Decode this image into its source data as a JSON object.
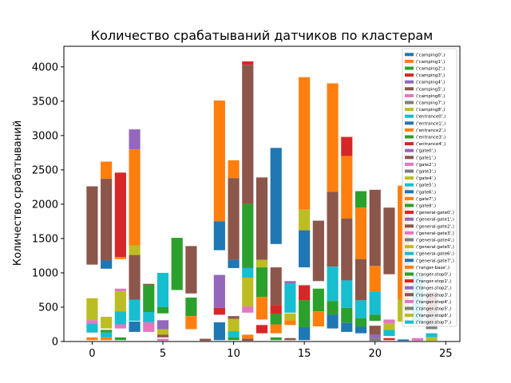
{
  "chart_data": {
    "type": "bar",
    "title": "Количество срабатываний датчиков по кластерам",
    "xlabel": "",
    "ylabel": "Количество срабатываний",
    "xlim": [
      -2,
      26
    ],
    "ylim": [
      0,
      4300
    ],
    "x_ticks": [
      0,
      5,
      10,
      15,
      20,
      25
    ],
    "y_ticks": [
      0,
      500,
      1000,
      1500,
      2000,
      2500,
      3000,
      3500,
      4000
    ],
    "grid": false,
    "legend_placement": "upper right",
    "series": [
      {
        "name": "('camping0',)",
        "color": "#1f77b4"
      },
      {
        "name": "('camping1',)",
        "color": "#ff7f0e"
      },
      {
        "name": "('camping2',)",
        "color": "#2ca02c"
      },
      {
        "name": "('camping3',)",
        "color": "#d62728"
      },
      {
        "name": "('camping4',)",
        "color": "#9467bd"
      },
      {
        "name": "('camping5',)",
        "color": "#8c564b"
      },
      {
        "name": "('camping6',)",
        "color": "#e377c2"
      },
      {
        "name": "('camping7',)",
        "color": "#7f7f7f"
      },
      {
        "name": "('camping8',)",
        "color": "#bcbd22"
      },
      {
        "name": "('entrance0',)",
        "color": "#17becf"
      },
      {
        "name": "('entrance1',)",
        "color": "#1f77b4"
      },
      {
        "name": "('entrance2',)",
        "color": "#ff7f0e"
      },
      {
        "name": "('entrance3',)",
        "color": "#2ca02c"
      },
      {
        "name": "('entrance4',)",
        "color": "#d62728"
      },
      {
        "name": "('gate0',)",
        "color": "#9467bd"
      },
      {
        "name": "('gate1',)",
        "color": "#8c564b"
      },
      {
        "name": "('gate2',)",
        "color": "#e377c2"
      },
      {
        "name": "('gate3',)",
        "color": "#7f7f7f"
      },
      {
        "name": "('gate4',)",
        "color": "#bcbd22"
      },
      {
        "name": "('gate5',)",
        "color": "#17becf"
      },
      {
        "name": "('gate6',)",
        "color": "#1f77b4"
      },
      {
        "name": "('gate7',)",
        "color": "#ff7f0e"
      },
      {
        "name": "('gate8',)",
        "color": "#2ca02c"
      },
      {
        "name": "('general-gate0',)",
        "color": "#d62728"
      },
      {
        "name": "('general-gate1',)",
        "color": "#9467bd"
      },
      {
        "name": "('general-gate2',)",
        "color": "#8c564b"
      },
      {
        "name": "('general-gate3',)",
        "color": "#e377c2"
      },
      {
        "name": "('general-gate4',)",
        "color": "#7f7f7f"
      },
      {
        "name": "('general-gate5',)",
        "color": "#bcbd22"
      },
      {
        "name": "('general-gate6',)",
        "color": "#17becf"
      },
      {
        "name": "('general-gate7',)",
        "color": "#1f77b4"
      },
      {
        "name": "('ranger-base',)",
        "color": "#ff7f0e"
      },
      {
        "name": "('ranger-stop0',)",
        "color": "#2ca02c"
      },
      {
        "name": "('ranger-stop1',)",
        "color": "#d62728"
      },
      {
        "name": "('ranger-stop2',)",
        "color": "#9467bd"
      },
      {
        "name": "('ranger-stop3',)",
        "color": "#8c564b"
      },
      {
        "name": "('ranger-stop4',)",
        "color": "#e377c2"
      },
      {
        "name": "('ranger-stop5',)",
        "color": "#7f7f7f"
      },
      {
        "name": "('ranger-stop6',)",
        "color": "#bcbd22"
      },
      {
        "name": "('ranger-stop7',)",
        "color": "#17becf"
      }
    ],
    "bars": [
      {
        "x": 0,
        "bottom": 1120,
        "top": 2260,
        "color": "#8c564b"
      },
      {
        "x": 0,
        "bottom": 310,
        "top": 630,
        "color": "#bcbd22"
      },
      {
        "x": 0,
        "bottom": 260,
        "top": 310,
        "color": "#e377c2"
      },
      {
        "x": 0,
        "bottom": 130,
        "top": 260,
        "color": "#17becf"
      },
      {
        "x": 0,
        "bottom": 20,
        "top": 60,
        "color": "#ff7f0e"
      },
      {
        "x": 1,
        "bottom": 2370,
        "top": 2620,
        "color": "#ff7f0e"
      },
      {
        "x": 1,
        "bottom": 1180,
        "top": 2370,
        "color": "#8c564b"
      },
      {
        "x": 1,
        "bottom": 1060,
        "top": 1180,
        "color": "#1f77b4"
      },
      {
        "x": 1,
        "bottom": 190,
        "top": 360,
        "color": "#bcbd22"
      },
      {
        "x": 1,
        "bottom": 130,
        "top": 170,
        "color": "#2ca02c"
      },
      {
        "x": 1,
        "bottom": 60,
        "top": 130,
        "color": "#17becf"
      },
      {
        "x": 1,
        "bottom": 20,
        "top": 60,
        "color": "#ff7f0e"
      },
      {
        "x": 2,
        "bottom": 1230,
        "top": 2460,
        "color": "#d62728"
      },
      {
        "x": 2,
        "bottom": 1200,
        "top": 1230,
        "color": "#ff7f0e"
      },
      {
        "x": 2,
        "bottom": 730,
        "top": 770,
        "color": "#e377c2"
      },
      {
        "x": 2,
        "bottom": 440,
        "top": 730,
        "color": "#bcbd22"
      },
      {
        "x": 2,
        "bottom": 250,
        "top": 440,
        "color": "#17becf"
      },
      {
        "x": 2,
        "bottom": 190,
        "top": 250,
        "color": "#e377c2"
      },
      {
        "x": 2,
        "bottom": 20,
        "top": 60,
        "color": "#2ca02c"
      },
      {
        "x": 3,
        "bottom": 2800,
        "top": 3090,
        "color": "#9467bd"
      },
      {
        "x": 3,
        "bottom": 1400,
        "top": 2800,
        "color": "#ff7f0e"
      },
      {
        "x": 3,
        "bottom": 1260,
        "top": 1400,
        "color": "#bcbd22"
      },
      {
        "x": 3,
        "bottom": 610,
        "top": 1260,
        "color": "#8c564b"
      },
      {
        "x": 3,
        "bottom": 300,
        "top": 610,
        "color": "#17becf"
      },
      {
        "x": 3,
        "bottom": 140,
        "top": 290,
        "color": "#1f77b4"
      },
      {
        "x": 4,
        "bottom": 820,
        "top": 840,
        "color": "#8c564b"
      },
      {
        "x": 4,
        "bottom": 430,
        "top": 820,
        "color": "#2ca02c"
      },
      {
        "x": 4,
        "bottom": 280,
        "top": 430,
        "color": "#17becf"
      },
      {
        "x": 4,
        "bottom": 140,
        "top": 280,
        "color": "#e377c2"
      },
      {
        "x": 5,
        "bottom": 500,
        "top": 1000,
        "color": "#17becf"
      },
      {
        "x": 5,
        "bottom": 410,
        "top": 500,
        "color": "#2ca02c"
      },
      {
        "x": 5,
        "bottom": 180,
        "top": 310,
        "color": "#9467bd"
      },
      {
        "x": 5,
        "bottom": 100,
        "top": 180,
        "color": "#bcbd22"
      },
      {
        "x": 5,
        "bottom": 60,
        "top": 100,
        "color": "#8c564b"
      },
      {
        "x": 5,
        "bottom": 10,
        "top": 40,
        "color": "#e377c2"
      },
      {
        "x": 6,
        "bottom": 750,
        "top": 1510,
        "color": "#2ca02c"
      },
      {
        "x": 7,
        "bottom": 700,
        "top": 1390,
        "color": "#8c564b"
      },
      {
        "x": 7,
        "bottom": 370,
        "top": 640,
        "color": "#2ca02c"
      },
      {
        "x": 7,
        "bottom": 180,
        "top": 370,
        "color": "#ff7f0e"
      },
      {
        "x": 8,
        "bottom": 10,
        "top": 40,
        "color": "#8c564b"
      },
      {
        "x": 9,
        "bottom": 1750,
        "top": 3510,
        "color": "#ff7f0e"
      },
      {
        "x": 9,
        "bottom": 1330,
        "top": 1750,
        "color": "#1f77b4"
      },
      {
        "x": 9,
        "bottom": 490,
        "top": 970,
        "color": "#9467bd"
      },
      {
        "x": 9,
        "bottom": 390,
        "top": 490,
        "color": "#d62728"
      },
      {
        "x": 9,
        "bottom": 20,
        "top": 280,
        "color": "#1f77b4"
      },
      {
        "x": 10,
        "bottom": 2380,
        "top": 2640,
        "color": "#ff7f0e"
      },
      {
        "x": 10,
        "bottom": 1190,
        "top": 2380,
        "color": "#8c564b"
      },
      {
        "x": 10,
        "bottom": 1070,
        "top": 1190,
        "color": "#1f77b4"
      },
      {
        "x": 10,
        "bottom": 330,
        "top": 370,
        "color": "#8c564b"
      },
      {
        "x": 10,
        "bottom": 150,
        "top": 330,
        "color": "#bcbd22"
      },
      {
        "x": 10,
        "bottom": 60,
        "top": 150,
        "color": "#17becf"
      },
      {
        "x": 10,
        "bottom": 20,
        "top": 60,
        "color": "#2ca02c"
      },
      {
        "x": 11,
        "bottom": 4030,
        "top": 4080,
        "color": "#d62728"
      },
      {
        "x": 11,
        "bottom": 2000,
        "top": 4030,
        "color": "#8c564b"
      },
      {
        "x": 11,
        "bottom": 1070,
        "top": 2000,
        "color": "#2ca02c"
      },
      {
        "x": 11,
        "bottom": 930,
        "top": 1070,
        "color": "#17becf"
      },
      {
        "x": 11,
        "bottom": 510,
        "top": 930,
        "color": "#bcbd22"
      },
      {
        "x": 11,
        "bottom": 420,
        "top": 510,
        "color": "#e377c2"
      },
      {
        "x": 11,
        "bottom": 40,
        "top": 100,
        "color": "#ff7f0e"
      },
      {
        "x": 11,
        "bottom": 10,
        "top": 40,
        "color": "#8c564b"
      },
      {
        "x": 12,
        "bottom": 1190,
        "top": 2390,
        "color": "#8c564b"
      },
      {
        "x": 12,
        "bottom": 1080,
        "top": 1190,
        "color": "#bcbd22"
      },
      {
        "x": 12,
        "bottom": 650,
        "top": 1080,
        "color": "#2ca02c"
      },
      {
        "x": 12,
        "bottom": 320,
        "top": 650,
        "color": "#ff7f0e"
      },
      {
        "x": 12,
        "bottom": 120,
        "top": 240,
        "color": "#d62728"
      },
      {
        "x": 13,
        "bottom": 1420,
        "top": 2820,
        "color": "#1f77b4"
      },
      {
        "x": 13,
        "bottom": 530,
        "top": 1080,
        "color": "#8c564b"
      },
      {
        "x": 13,
        "bottom": 400,
        "top": 530,
        "color": "#d62728"
      },
      {
        "x": 13,
        "bottom": 250,
        "top": 400,
        "color": "#2ca02c"
      },
      {
        "x": 13,
        "bottom": 120,
        "top": 250,
        "color": "#ff7f0e"
      },
      {
        "x": 13,
        "bottom": 20,
        "top": 60,
        "color": "#2ca02c"
      },
      {
        "x": 14,
        "bottom": 840,
        "top": 880,
        "color": "#9467bd"
      },
      {
        "x": 14,
        "bottom": 420,
        "top": 840,
        "color": "#17becf"
      },
      {
        "x": 14,
        "bottom": 310,
        "top": 410,
        "color": "#bcbd22"
      },
      {
        "x": 14,
        "bottom": 240,
        "top": 310,
        "color": "#ff7f0e"
      },
      {
        "x": 14,
        "bottom": 20,
        "top": 50,
        "color": "#8c564b"
      },
      {
        "x": 15,
        "bottom": 1920,
        "top": 3850,
        "color": "#ff7f0e"
      },
      {
        "x": 15,
        "bottom": 1620,
        "top": 1920,
        "color": "#bcbd22"
      },
      {
        "x": 15,
        "bottom": 1080,
        "top": 1620,
        "color": "#1f77b4"
      },
      {
        "x": 15,
        "bottom": 600,
        "top": 820,
        "color": "#d62728"
      },
      {
        "x": 15,
        "bottom": 210,
        "top": 600,
        "color": "#2ca02c"
      },
      {
        "x": 15,
        "bottom": 20,
        "top": 210,
        "color": "#1f77b4"
      },
      {
        "x": 16,
        "bottom": 880,
        "top": 1760,
        "color": "#8c564b"
      },
      {
        "x": 16,
        "bottom": 440,
        "top": 770,
        "color": "#2ca02c"
      },
      {
        "x": 16,
        "bottom": 220,
        "top": 440,
        "color": "#ff7f0e"
      },
      {
        "x": 17,
        "bottom": 2180,
        "top": 3760,
        "color": "#ff7f0e"
      },
      {
        "x": 17,
        "bottom": 1090,
        "top": 2180,
        "color": "#8c564b"
      },
      {
        "x": 17,
        "bottom": 590,
        "top": 1090,
        "color": "#17becf"
      },
      {
        "x": 17,
        "bottom": 390,
        "top": 590,
        "color": "#2ca02c"
      },
      {
        "x": 17,
        "bottom": 190,
        "top": 390,
        "color": "#1f77b4"
      },
      {
        "x": 18,
        "bottom": 2700,
        "top": 2980,
        "color": "#d62728"
      },
      {
        "x": 18,
        "bottom": 1790,
        "top": 2700,
        "color": "#ff7f0e"
      },
      {
        "x": 18,
        "bottom": 890,
        "top": 1790,
        "color": "#8c564b"
      },
      {
        "x": 18,
        "bottom": 490,
        "top": 890,
        "color": "#17becf"
      },
      {
        "x": 18,
        "bottom": 270,
        "top": 490,
        "color": "#2ca02c"
      },
      {
        "x": 18,
        "bottom": 140,
        "top": 270,
        "color": "#1f77b4"
      },
      {
        "x": 19,
        "bottom": 1950,
        "top": 2190,
        "color": "#2ca02c"
      },
      {
        "x": 19,
        "bottom": 1200,
        "top": 1950,
        "color": "#ff7f0e"
      },
      {
        "x": 19,
        "bottom": 600,
        "top": 1200,
        "color": "#8c564b"
      },
      {
        "x": 19,
        "bottom": 340,
        "top": 600,
        "color": "#17becf"
      },
      {
        "x": 19,
        "bottom": 220,
        "top": 340,
        "color": "#2ca02c"
      },
      {
        "x": 19,
        "bottom": 120,
        "top": 220,
        "color": "#1f77b4"
      },
      {
        "x": 20,
        "bottom": 1100,
        "top": 2210,
        "color": "#8c564b"
      },
      {
        "x": 20,
        "bottom": 730,
        "top": 1100,
        "color": "#ff7f0e"
      },
      {
        "x": 20,
        "bottom": 390,
        "top": 730,
        "color": "#17becf"
      },
      {
        "x": 20,
        "bottom": 300,
        "top": 390,
        "color": "#2ca02c"
      },
      {
        "x": 20,
        "bottom": 100,
        "top": 230,
        "color": "#8c564b"
      },
      {
        "x": 20,
        "bottom": 50,
        "top": 100,
        "color": "#9467bd"
      },
      {
        "x": 20,
        "bottom": 10,
        "top": 50,
        "color": "#7f7f7f"
      },
      {
        "x": 21,
        "bottom": 980,
        "top": 1950,
        "color": "#8c564b"
      },
      {
        "x": 21,
        "bottom": 260,
        "top": 320,
        "color": "#e377c2"
      },
      {
        "x": 21,
        "bottom": 170,
        "top": 260,
        "color": "#bcbd22"
      },
      {
        "x": 21,
        "bottom": 80,
        "top": 170,
        "color": "#17becf"
      },
      {
        "x": 21,
        "bottom": 20,
        "top": 50,
        "color": "#d62728"
      },
      {
        "x": 22,
        "bottom": 610,
        "top": 2270,
        "color": "#ff7f0e"
      },
      {
        "x": 22,
        "bottom": 290,
        "top": 610,
        "color": "#bcbd22"
      },
      {
        "x": 22,
        "bottom": 10,
        "top": 30,
        "color": "#1f77b4"
      },
      {
        "x": 23,
        "bottom": 250,
        "top": 960,
        "color": "#17becf"
      },
      {
        "x": 23,
        "bottom": 10,
        "top": 50,
        "color": "#e377c2"
      },
      {
        "x": 24,
        "bottom": 400,
        "top": 720,
        "color": "#8c564b"
      },
      {
        "x": 24,
        "bottom": 180,
        "top": 400,
        "color": "#7f7f7f"
      },
      {
        "x": 24,
        "bottom": 60,
        "top": 120,
        "color": "#17becf"
      },
      {
        "x": 24,
        "bottom": 10,
        "top": 60,
        "color": "#bcbd22"
      }
    ]
  }
}
